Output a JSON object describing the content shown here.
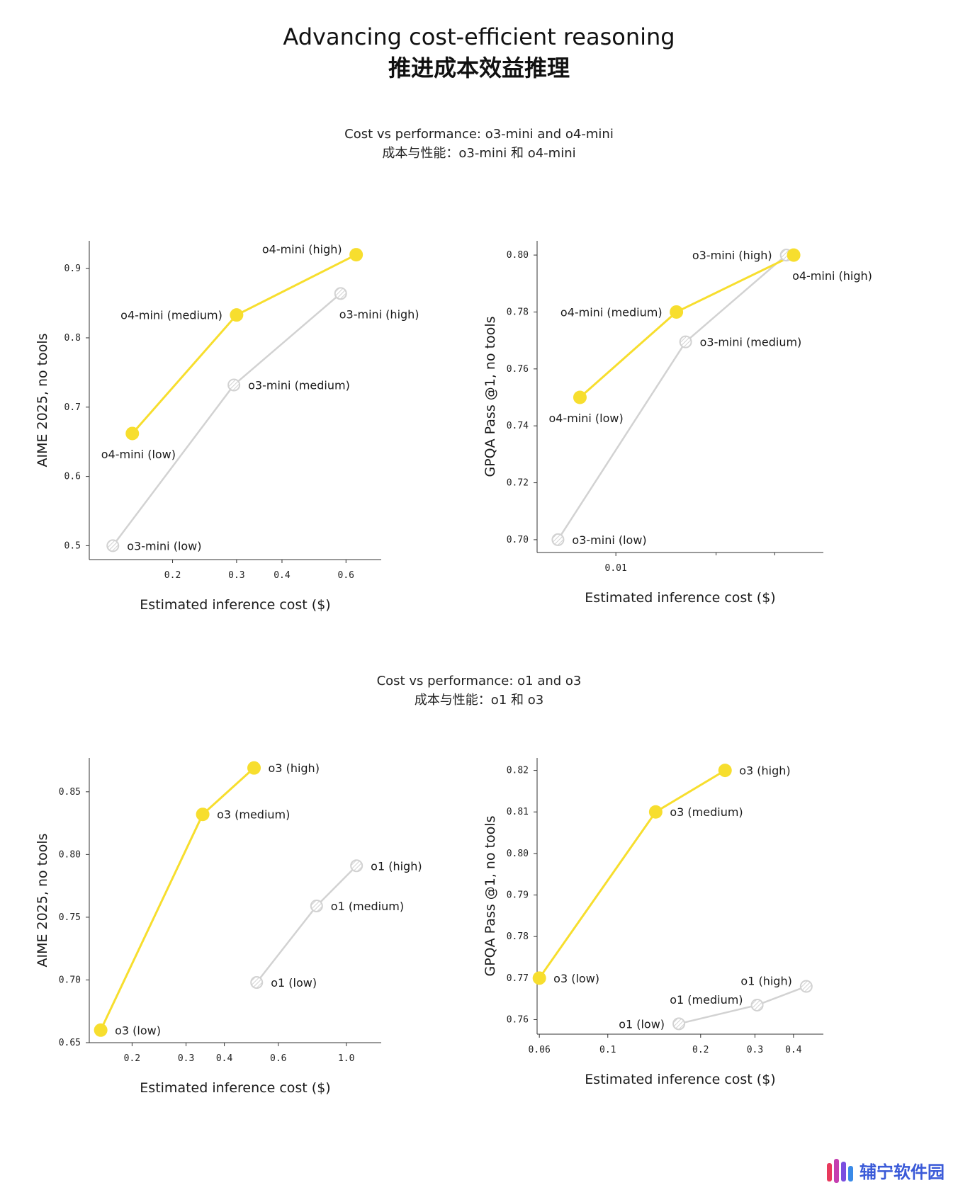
{
  "header": {
    "title_en": "Advancing cost-efficient reasoning",
    "title_cn": "推进成本效益推理"
  },
  "sections": [
    {
      "title_en": "Cost vs performance: o3-mini and o4-mini",
      "title_cn": "成本与性能：o3-mini 和 o4-mini"
    },
    {
      "title_en": "Cost vs performance: o1 and o3",
      "title_cn": "成本与性能：o1 和 o3"
    }
  ],
  "colors": {
    "highlight": "#f7de2e",
    "baseline": "#d2d2d2",
    "axis": "#333333"
  },
  "watermark": {
    "text": "辅宁软件园"
  },
  "chart_data": [
    {
      "type": "line",
      "xscale": "log",
      "xlim": [
        0.118,
        0.75
      ],
      "ylim": [
        0.48,
        0.94
      ],
      "xticks": [
        0.2,
        0.3,
        0.4,
        0.6
      ],
      "xtick_labels": [
        "0.2",
        "0.3",
        "0.4",
        "0.6"
      ],
      "yticks": [
        0.5,
        0.6,
        0.7,
        0.8,
        0.9
      ],
      "ytick_labels": [
        "0.5",
        "0.6",
        "0.7",
        "0.8",
        "0.9"
      ],
      "xlabel": "Estimated inference cost ($)",
      "ylabel": "AIME 2025, no tools",
      "series": [
        {
          "style": "highlight",
          "points": [
            {
              "x": 0.155,
              "y": 0.662,
              "label": "o4-mini (low)",
              "pos": "below"
            },
            {
              "x": 0.3,
              "y": 0.833,
              "label": "o4-mini (medium)",
              "pos": "left"
            },
            {
              "x": 0.64,
              "y": 0.92,
              "label": "o4-mini (high)",
              "pos": "left-up"
            }
          ]
        },
        {
          "style": "baseline",
          "points": [
            {
              "x": 0.137,
              "y": 0.5,
              "label": "o3-mini (low)",
              "pos": "right"
            },
            {
              "x": 0.295,
              "y": 0.732,
              "label": "o3-mini (medium)",
              "pos": "right"
            },
            {
              "x": 0.58,
              "y": 0.864,
              "label": "o3-mini (high)",
              "pos": "below-right"
            }
          ]
        }
      ]
    },
    {
      "type": "line",
      "xscale": "log",
      "xlim": [
        0.0058,
        0.042
      ],
      "ylim": [
        0.6955,
        0.805
      ],
      "xticks": [
        0.01
      ],
      "xtick_labels": [
        "0.01"
      ],
      "xminor": [
        0.02,
        0.03
      ],
      "yticks": [
        0.7,
        0.72,
        0.74,
        0.76,
        0.78,
        0.8
      ],
      "ytick_labels": [
        "0.70",
        "0.72",
        "0.74",
        "0.76",
        "0.78",
        "0.80"
      ],
      "xlabel": "Estimated inference cost ($)",
      "ylabel": "GPQA Pass @1, no tools",
      "series": [
        {
          "style": "baseline",
          "points": [
            {
              "x": 0.0067,
              "y": 0.7,
              "label": "o3-mini (low)",
              "pos": "right"
            },
            {
              "x": 0.0162,
              "y": 0.7695,
              "label": "o3-mini (medium)",
              "pos": "right"
            },
            {
              "x": 0.0325,
              "y": 0.8,
              "label": "o3-mini (high)",
              "pos": "left"
            }
          ]
        },
        {
          "style": "highlight",
          "points": [
            {
              "x": 0.0078,
              "y": 0.75,
              "label": "o4-mini (low)",
              "pos": "below"
            },
            {
              "x": 0.0152,
              "y": 0.78,
              "label": "o4-mini (medium)",
              "pos": "left"
            },
            {
              "x": 0.0342,
              "y": 0.8,
              "label": "o4-mini (high)",
              "pos": "below-right"
            }
          ]
        }
      ]
    },
    {
      "type": "line",
      "xscale": "log",
      "xlim": [
        0.145,
        1.3
      ],
      "ylim": [
        0.65,
        0.877
      ],
      "xticks": [
        0.2,
        0.3,
        0.4,
        0.6,
        1.0
      ],
      "xtick_labels": [
        "0.2",
        "0.3",
        "0.4",
        "0.6",
        "1.0"
      ],
      "yticks": [
        0.65,
        0.7,
        0.75,
        0.8,
        0.85
      ],
      "ytick_labels": [
        "0.65",
        "0.70",
        "0.75",
        "0.80",
        "0.85"
      ],
      "xlabel": "Estimated inference cost ($)",
      "ylabel": "AIME 2025, no tools",
      "series": [
        {
          "style": "highlight",
          "points": [
            {
              "x": 0.158,
              "y": 0.66,
              "label": "o3 (low)",
              "pos": "right"
            },
            {
              "x": 0.34,
              "y": 0.832,
              "label": "o3 (medium)",
              "pos": "right"
            },
            {
              "x": 0.5,
              "y": 0.869,
              "label": "o3 (high)",
              "pos": "right"
            }
          ]
        },
        {
          "style": "baseline",
          "points": [
            {
              "x": 0.51,
              "y": 0.698,
              "label": "o1 (low)",
              "pos": "right"
            },
            {
              "x": 0.8,
              "y": 0.759,
              "label": "o1 (medium)",
              "pos": "right"
            },
            {
              "x": 1.08,
              "y": 0.791,
              "label": "o1 (high)",
              "pos": "right"
            }
          ]
        }
      ]
    },
    {
      "type": "line",
      "xscale": "log",
      "xlim": [
        0.059,
        0.5
      ],
      "ylim": [
        0.7565,
        0.823
      ],
      "xticks": [
        0.06,
        0.1,
        0.2,
        0.3,
        0.4
      ],
      "xtick_labels": [
        "0.06",
        "0.1",
        "0.2",
        "0.3",
        "0.4"
      ],
      "yticks": [
        0.76,
        0.77,
        0.78,
        0.79,
        0.8,
        0.81,
        0.82
      ],
      "ytick_labels": [
        "0.76",
        "0.77",
        "0.78",
        "0.79",
        "0.80",
        "0.81",
        "0.82"
      ],
      "xlabel": "Estimated inference cost ($)",
      "ylabel": "GPQA Pass @1, no tools",
      "series": [
        {
          "style": "highlight",
          "points": [
            {
              "x": 0.06,
              "y": 0.77,
              "label": "o3 (low)",
              "pos": "right"
            },
            {
              "x": 0.143,
              "y": 0.81,
              "label": "o3 (medium)",
              "pos": "right"
            },
            {
              "x": 0.24,
              "y": 0.82,
              "label": "o3 (high)",
              "pos": "right"
            }
          ]
        },
        {
          "style": "baseline",
          "points": [
            {
              "x": 0.17,
              "y": 0.759,
              "label": "o1 (low)",
              "pos": "left"
            },
            {
              "x": 0.305,
              "y": 0.7635,
              "label": "o1 (medium)",
              "pos": "left-up"
            },
            {
              "x": 0.44,
              "y": 0.768,
              "label": "o1 (high)",
              "pos": "left-up"
            }
          ]
        }
      ]
    }
  ]
}
